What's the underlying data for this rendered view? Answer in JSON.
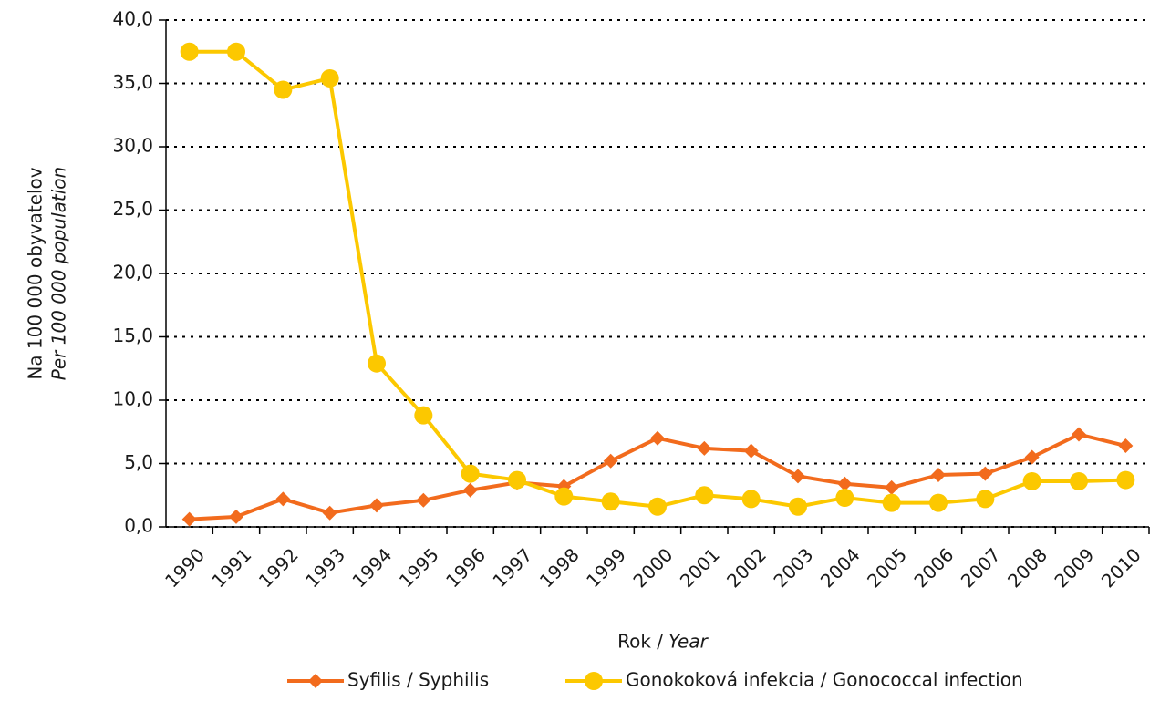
{
  "chart_data": {
    "type": "line",
    "categories": [
      "1990",
      "1991",
      "1992",
      "1993",
      "1994",
      "1995",
      "1996",
      "1997",
      "1998",
      "1999",
      "2000",
      "2001",
      "2002",
      "2003",
      "2004",
      "2005",
      "2006",
      "2007",
      "2008",
      "2009",
      "2010"
    ],
    "series": [
      {
        "name": "Syfilis / Syphilis",
        "color": "#f26b1d",
        "marker": "diamond",
        "values": [
          0.6,
          0.8,
          2.2,
          1.1,
          1.7,
          2.1,
          2.9,
          3.5,
          3.2,
          5.2,
          7.0,
          6.2,
          6.0,
          4.0,
          3.4,
          3.1,
          4.1,
          4.2,
          5.5,
          7.3,
          6.4
        ]
      },
      {
        "name": "Gonokoková infekcia / Gonococcal infection",
        "color": "#fcc800",
        "marker": "circle",
        "values": [
          37.5,
          37.5,
          34.5,
          35.4,
          12.9,
          8.8,
          4.2,
          3.7,
          2.4,
          2.0,
          1.6,
          2.5,
          2.2,
          1.6,
          2.3,
          1.9,
          1.9,
          2.2,
          3.6,
          3.6,
          3.7
        ]
      }
    ],
    "ylim": [
      0,
      40
    ],
    "yticks": [
      {
        "value": 0,
        "label": "0,0"
      },
      {
        "value": 5,
        "label": "5,0"
      },
      {
        "value": 10,
        "label": "10,0"
      },
      {
        "value": 15,
        "label": "15,0"
      },
      {
        "value": 20,
        "label": "20,0"
      },
      {
        "value": 25,
        "label": "25,0"
      },
      {
        "value": 30,
        "label": "30,0"
      },
      {
        "value": 35,
        "label": "35,0"
      },
      {
        "value": 40,
        "label": "40,0"
      }
    ],
    "y_label": [
      "Na 100 000 obyvatelov",
      "Per 100 000 population"
    ],
    "x_label": [
      "Rok /",
      "Year"
    ],
    "grid": true,
    "legend": "bottom"
  }
}
